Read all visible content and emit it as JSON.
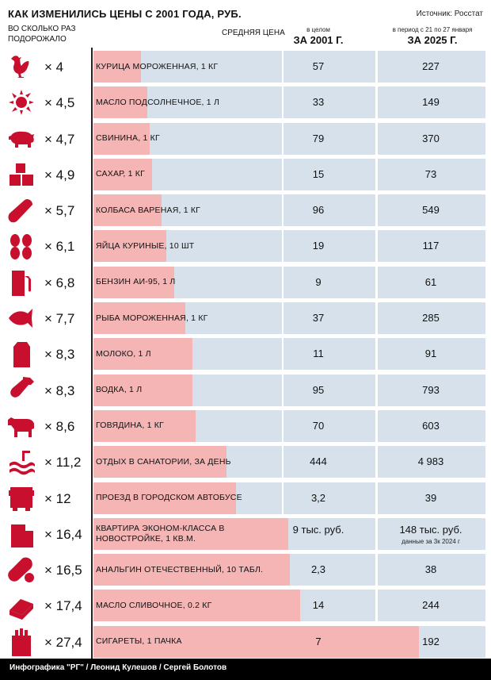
{
  "title": "КАК ИЗМЕНИЛИСЬ ЦЕНЫ С 2001 ГОДА, РУБ.",
  "source": "Источник: Росстат",
  "header": {
    "times_label": "ВО СКОЛЬКО РАЗ ПОДОРОЖАЛО",
    "avg_label": "СРЕДНЯЯ ЦЕНА",
    "col2001_sub": "в целом",
    "col2001_main": "ЗА 2001 Г.",
    "col2025_sub": "в период с 21 по 27 января",
    "col2025_main": "ЗА 2025 Г."
  },
  "colors": {
    "bar": "#f5b5b5",
    "band": "#d6e1ec",
    "icon": "#c8102e"
  },
  "chart_data": {
    "type": "bar",
    "max_multiplier": 27.4,
    "categories": [
      "Курица мороженная, 1 кг",
      "Масло подсолнечное, 1 л",
      "Свинина, 1 кг",
      "Сахар, 1 кг",
      "Колбаса вареная, 1 кг",
      "Яйца куриные, 10 шт",
      "Бензин АИ-95, 1 л",
      "Рыба мороженная, 1 кг",
      "Молоко, 1 л",
      "Водка, 1 л",
      "Говядина, 1 кг",
      "Отдых в санатории, за день",
      "Проезд в городском автобусе",
      "Квартира эконом-класса в новостройке, 1 кв.м.",
      "Анальгин отечественный, 10 табл.",
      "Масло сливочное, 0.2 кг",
      "Сигареты, 1 пачка"
    ],
    "rows": [
      {
        "icon": "chicken-icon",
        "mult_label": "× 4",
        "mult": 4,
        "name": "Курица мороженная, 1 кг",
        "price2001": "57",
        "price2025": "227",
        "note": ""
      },
      {
        "icon": "sunflower-icon",
        "mult_label": "× 4,5",
        "mult": 4.5,
        "name": "Масло подсолнечное, 1 л",
        "price2001": "33",
        "price2025": "149",
        "note": ""
      },
      {
        "icon": "pig-icon",
        "mult_label": "× 4,7",
        "mult": 4.7,
        "name": "Свинина, 1 кг",
        "price2001": "79",
        "price2025": "370",
        "note": ""
      },
      {
        "icon": "sugar-cubes-icon",
        "mult_label": "× 4,9",
        "mult": 4.9,
        "name": "Сахар, 1 кг",
        "price2001": "15",
        "price2025": "73",
        "note": ""
      },
      {
        "icon": "sausage-icon",
        "mult_label": "× 5,7",
        "mult": 5.7,
        "name": "Колбаса вареная, 1 кг",
        "price2001": "96",
        "price2025": "549",
        "note": ""
      },
      {
        "icon": "eggs-icon",
        "mult_label": "× 6,1",
        "mult": 6.1,
        "name": "Яйца куриные, 10 шт",
        "price2001": "19",
        "price2025": "117",
        "note": ""
      },
      {
        "icon": "fuel-pump-icon",
        "mult_label": "× 6,8",
        "mult": 6.8,
        "name": "Бензин АИ-95, 1 л",
        "price2001": "9",
        "price2025": "61",
        "note": ""
      },
      {
        "icon": "fish-icon",
        "mult_label": "× 7,7",
        "mult": 7.7,
        "name": "Рыба мороженная, 1 кг",
        "price2001": "37",
        "price2025": "285",
        "note": ""
      },
      {
        "icon": "milk-carton-icon",
        "mult_label": "× 8,3",
        "mult": 8.3,
        "name": "Молоко, 1 л",
        "price2001": "11",
        "price2025": "91",
        "note": ""
      },
      {
        "icon": "bottle-icon",
        "mult_label": "× 8,3",
        "mult": 8.3,
        "name": "Водка, 1 л",
        "price2001": "95",
        "price2025": "793",
        "note": ""
      },
      {
        "icon": "cow-icon",
        "mult_label": "× 8,6",
        "mult": 8.6,
        "name": "Говядина, 1 кг",
        "price2001": "70",
        "price2025": "603",
        "note": ""
      },
      {
        "icon": "spa-icon",
        "mult_label": "× 11,2",
        "mult": 11.2,
        "name": "Отдых в санатории, за день",
        "price2001": "444",
        "price2025": "4 983",
        "note": ""
      },
      {
        "icon": "bus-icon",
        "mult_label": "× 12",
        "mult": 12,
        "name": "Проезд в городском автобусе",
        "price2001": "3,2",
        "price2025": "39",
        "note": ""
      },
      {
        "icon": "building-icon",
        "mult_label": "× 16,4",
        "mult": 16.4,
        "name": "Квартира эконом-класса в новостройке, 1 кв.м.",
        "price2001": "9 тыс. руб.",
        "price2025": "148 тыс. руб.",
        "note": "данные за 3к 2024 г"
      },
      {
        "icon": "pill-icon",
        "mult_label": "× 16,5",
        "mult": 16.5,
        "name": "Анальгин отечественный, 10 табл.",
        "price2001": "2,3",
        "price2025": "38",
        "note": ""
      },
      {
        "icon": "butter-icon",
        "mult_label": "× 17,4",
        "mult": 17.4,
        "name": "Масло сливочное, 0.2 кг",
        "price2001": "14",
        "price2025": "244",
        "note": ""
      },
      {
        "icon": "cigarettes-icon",
        "mult_label": "× 27,4",
        "mult": 27.4,
        "name": "Сигареты, 1 пачка",
        "price2001": "7",
        "price2025": "192",
        "note": ""
      }
    ]
  },
  "footer": "Инфографика \"РГ\" / Леонид Кулешов / Сергей Болотов"
}
